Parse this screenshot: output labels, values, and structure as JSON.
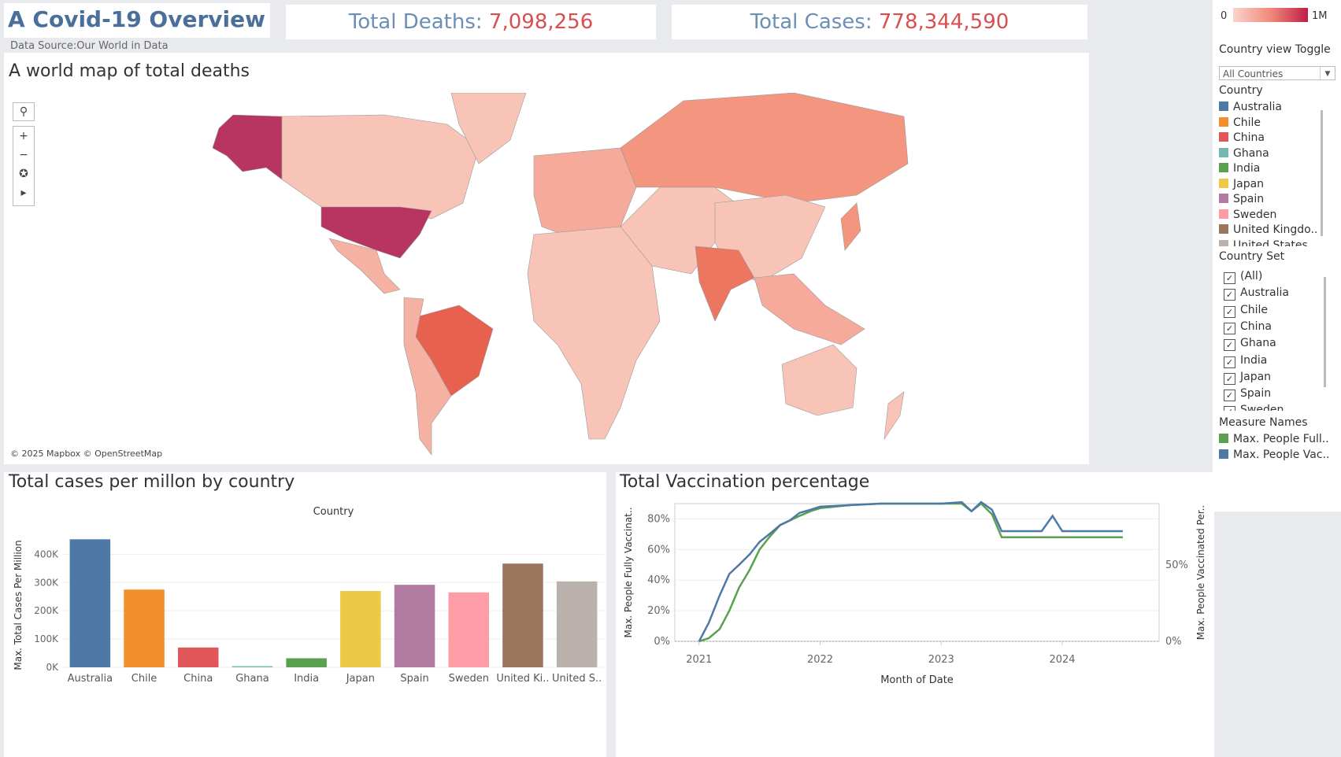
{
  "header": {
    "title": "A Covid-19 Overview",
    "source": "Data Source:Our World in Data",
    "deaths_label": "Total Deaths:",
    "deaths_value": "7,098,256",
    "cases_label": "Total Cases:",
    "cases_value": "778,344,590"
  },
  "map": {
    "title": "A world map of total deaths",
    "copyright": "© 2025 Mapbox © OpenStreetMap",
    "controls": [
      "search-icon",
      "plus-icon",
      "minus-icon",
      "pin-icon",
      "play-icon"
    ]
  },
  "legend": {
    "color_min": "0",
    "color_max": "1M",
    "toggle_label": "Country view Toggle",
    "toggle_value": "All Countries",
    "country_label": "Country",
    "countries": [
      {
        "name": "Australia",
        "color": "#4e79a7"
      },
      {
        "name": "Chile",
        "color": "#f28e2b"
      },
      {
        "name": "China",
        "color": "#e15759"
      },
      {
        "name": "Ghana",
        "color": "#76b7b2"
      },
      {
        "name": "India",
        "color": "#59a14f"
      },
      {
        "name": "Japan",
        "color": "#edc948"
      },
      {
        "name": "Spain",
        "color": "#b07aa1"
      },
      {
        "name": "Sweden",
        "color": "#ff9da7"
      },
      {
        "name": "United Kingdo..",
        "color": "#9c755f"
      },
      {
        "name": "United States",
        "color": "#bab0ac"
      }
    ],
    "set_label": "Country Set",
    "set_items": [
      "(All)",
      "Australia",
      "Chile",
      "China",
      "Ghana",
      "India",
      "Japan",
      "Spain",
      "Sweden"
    ],
    "measure_label": "Measure Names",
    "measures": [
      {
        "name": "Max. People Full..",
        "color": "#59a14f"
      },
      {
        "name": "Max. People Vac..",
        "color": "#4e79a7"
      }
    ]
  },
  "chart_data": [
    {
      "type": "bar",
      "title": "Total cases per millon by country",
      "header": "Country",
      "ylabel": "Max. Total Cases Per Million",
      "categories": [
        "Australia",
        "Chile",
        "China",
        "Ghana",
        "India",
        "Japan",
        "Spain",
        "Sweden",
        "United Ki..",
        "United S.."
      ],
      "values": [
        453000,
        275000,
        70000,
        4000,
        32000,
        270000,
        292000,
        265000,
        367000,
        304000
      ],
      "colors": [
        "#4e79a7",
        "#f28e2b",
        "#e15759",
        "#76b7b2",
        "#59a14f",
        "#edc948",
        "#b07aa1",
        "#ff9da7",
        "#9c755f",
        "#bab0ac"
      ],
      "ylim": [
        0,
        440000
      ],
      "yticks": [
        0,
        100000,
        200000,
        300000,
        400000
      ],
      "ytick_labels": [
        "0K",
        "100K",
        "200K",
        "300K",
        "400K"
      ]
    },
    {
      "type": "line",
      "title": "Total Vaccination percentage",
      "xlabel": "Month of Date",
      "ylabel_left": "Max. People Fully Vaccinat..",
      "ylabel_right": "Max. People Vaccinated Per..",
      "xtick_labels": [
        "2021",
        "2022",
        "2023",
        "2024"
      ],
      "xticks": [
        2021,
        2022,
        2023,
        2024
      ],
      "xlim": [
        2020.8,
        2024.8
      ],
      "ylim": [
        0,
        90
      ],
      "left_ticks": [
        0,
        20,
        40,
        60,
        80
      ],
      "left_tick_labels": [
        "0%",
        "20%",
        "40%",
        "60%",
        "80%"
      ],
      "right_tick_labels": [
        "0%",
        "50%"
      ],
      "series": [
        {
          "name": "Max. People Full..",
          "color": "#59a14f",
          "x": [
            2021.0,
            2021.08,
            2021.17,
            2021.25,
            2021.33,
            2021.42,
            2021.5,
            2021.58,
            2021.67,
            2021.75,
            2021.83,
            2021.92,
            2022.0,
            2022.25,
            2022.5,
            2022.75,
            2023.0,
            2023.17,
            2023.25,
            2023.33,
            2023.42,
            2023.5,
            2023.58,
            2023.67,
            2023.75,
            2023.83,
            2023.92,
            2024.0,
            2024.25,
            2024.5
          ],
          "y": [
            0,
            2,
            8,
            20,
            35,
            47,
            60,
            68,
            76,
            79,
            82,
            85,
            87,
            89,
            90,
            90,
            90,
            90,
            85,
            90,
            83,
            68,
            68,
            68,
            68,
            68,
            68,
            68,
            68,
            68
          ]
        },
        {
          "name": "Max. People Vac..",
          "color": "#4e79a7",
          "x": [
            2021.0,
            2021.08,
            2021.17,
            2021.25,
            2021.33,
            2021.42,
            2021.5,
            2021.58,
            2021.67,
            2021.75,
            2021.83,
            2021.92,
            2022.0,
            2022.25,
            2022.5,
            2022.75,
            2023.0,
            2023.17,
            2023.25,
            2023.33,
            2023.42,
            2023.5,
            2023.58,
            2023.67,
            2023.75,
            2023.83,
            2023.92,
            2024.0,
            2024.25,
            2024.5
          ],
          "y": [
            0,
            12,
            30,
            44,
            50,
            57,
            65,
            70,
            76,
            79,
            84,
            86,
            88,
            89,
            90,
            90,
            90,
            91,
            85,
            91,
            86,
            72,
            72,
            72,
            72,
            72,
            82,
            72,
            72,
            72
          ]
        }
      ]
    }
  ]
}
